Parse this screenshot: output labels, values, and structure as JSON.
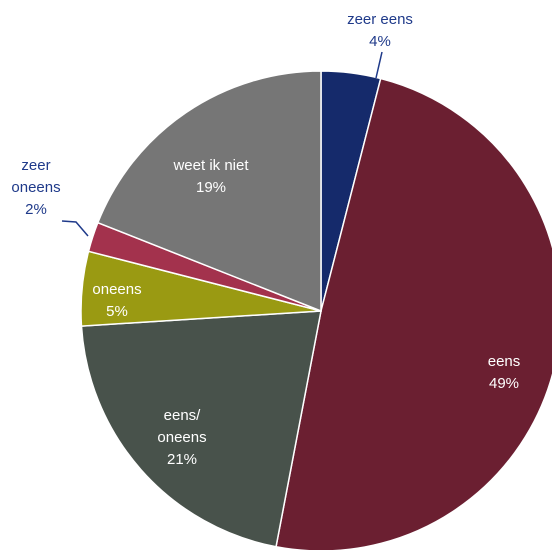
{
  "chart_data": {
    "type": "pie",
    "title": "",
    "start": "top",
    "direction": "clockwise",
    "legend": "none",
    "slices": [
      {
        "name": "zeer eens",
        "value": 4,
        "label": "4%",
        "color": "#152a6b",
        "label_color": "#1f3a8a"
      },
      {
        "name": "eens",
        "value": 49,
        "label": "49%",
        "color": "#6b1f31",
        "label_color": "#ffffff"
      },
      {
        "name": "eens/ oneens",
        "value": 21,
        "label": "21%",
        "color": "#48524b",
        "label_color": "#ffffff"
      },
      {
        "name": "oneens",
        "value": 5,
        "label": "5%",
        "color": "#9a9a12",
        "label_color": "#ffffff"
      },
      {
        "name": "zeer oneens",
        "value": 2,
        "label": "2%",
        "color": "#a3324d",
        "label_color": "#1f3a8a"
      },
      {
        "name": "weet ik niet",
        "value": 19,
        "label": "19%",
        "color": "#767676",
        "label_color": "#ffffff"
      }
    ]
  }
}
